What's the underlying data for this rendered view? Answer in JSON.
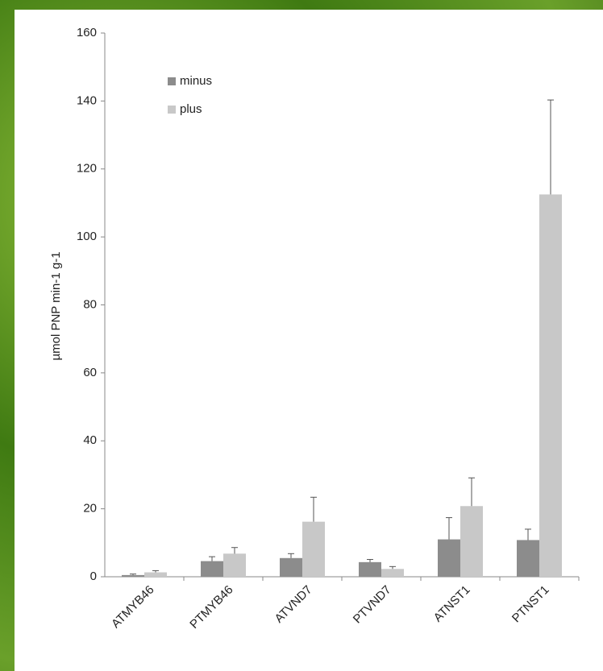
{
  "chart_data": {
    "type": "bar",
    "y_label": "µmol PNP min-1 g-1",
    "categories": [
      "ATMYB46",
      "PTMYB46",
      "ATVND7",
      "PTVND7",
      "ATNST1",
      "PTNST1"
    ],
    "series": [
      {
        "name": "minus",
        "color": "#8c8c8c",
        "values": [
          0.5,
          4.6,
          5.5,
          4.3,
          11,
          10.8
        ],
        "errors": [
          0.3,
          1.3,
          1.3,
          0.8,
          6.4,
          3.2
        ]
      },
      {
        "name": "plus",
        "color": "#c8c8c8",
        "values": [
          1.3,
          6.8,
          16.2,
          2.3,
          20.8,
          112.5
        ],
        "errors": [
          0.5,
          1.8,
          7.2,
          0.7,
          8.3,
          27.8
        ]
      }
    ],
    "ylim": [
      0,
      160
    ],
    "yticks": [
      0,
      20,
      40,
      60,
      80,
      100,
      120,
      140,
      160
    ],
    "legend": "top-left"
  }
}
